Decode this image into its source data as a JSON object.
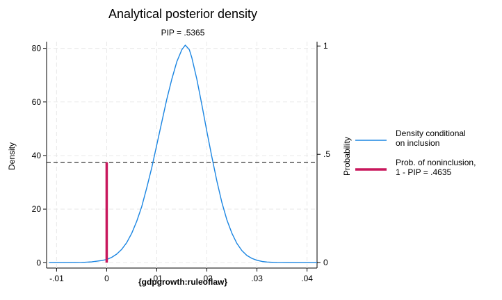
{
  "chart_data": {
    "type": "line",
    "title": "Analytical posterior density",
    "subtitle": "PIP = .5365",
    "xlabel": "{gdpgrowth:ruleoflaw}",
    "ylabel": "Density",
    "y2label": "Probability",
    "xlim": [
      -0.012,
      0.042
    ],
    "ylim": [
      -2,
      82.5
    ],
    "y2lim": [
      -0.025,
      1.02
    ],
    "grid": true,
    "legend_position": "right",
    "x_ticks": [
      {
        "value": -0.01,
        "label": "-.01"
      },
      {
        "value": 0,
        "label": "0"
      },
      {
        "value": 0.01,
        "label": ".01"
      },
      {
        "value": 0.02,
        "label": ".02"
      },
      {
        "value": 0.03,
        "label": ".03"
      },
      {
        "value": 0.04,
        "label": ".04"
      }
    ],
    "y_ticks": [
      {
        "value": 0,
        "label": "0"
      },
      {
        "value": 20,
        "label": "20"
      },
      {
        "value": 40,
        "label": "40"
      },
      {
        "value": 60,
        "label": "60"
      },
      {
        "value": 80,
        "label": "80"
      }
    ],
    "y2_ticks": [
      {
        "value": 0,
        "label": "0"
      },
      {
        "value": 0.5,
        "label": ".5"
      },
      {
        "value": 1,
        "label": "1"
      }
    ],
    "series": [
      {
        "name": "Density conditional on inclusion",
        "legend_lines": [
          "Density conditional",
          "on inclusion"
        ],
        "color": "#1a85e2",
        "x": [
          -0.0115,
          -0.008,
          -0.005,
          -0.003,
          -0.001,
          0.0,
          0.001,
          0.002,
          0.003,
          0.004,
          0.005,
          0.006,
          0.007,
          0.008,
          0.009,
          0.01,
          0.011,
          0.012,
          0.013,
          0.014,
          0.015,
          0.0157,
          0.0165,
          0.017,
          0.018,
          0.019,
          0.02,
          0.021,
          0.022,
          0.023,
          0.024,
          0.025,
          0.026,
          0.027,
          0.028,
          0.029,
          0.03,
          0.031,
          0.032,
          0.034,
          0.036,
          0.038,
          0.042
        ],
        "y": [
          0,
          0.02,
          0.1,
          0.3,
          0.8,
          1.2,
          2.0,
          3.2,
          5.0,
          7.5,
          11.0,
          15.5,
          21.0,
          28.0,
          35.5,
          44.0,
          52.5,
          61.0,
          68.5,
          75.0,
          79.5,
          81.2,
          79.5,
          76.5,
          68.5,
          59.0,
          49.0,
          39.5,
          30.5,
          22.5,
          16.0,
          11.0,
          7.2,
          4.5,
          2.7,
          1.6,
          0.9,
          0.5,
          0.25,
          0.06,
          0.01,
          0,
          0
        ]
      },
      {
        "name": "Prob. of noninclusion, 1 - PIP = .4635",
        "legend_lines": [
          "Prob. of noninclusion,",
          "1 - PIP = .4635"
        ],
        "color": "#c8175c",
        "type": "spike",
        "x": 0,
        "probability": 0.4635
      }
    ],
    "reference_line": {
      "axis": "y2",
      "value": 0.4635,
      "style": "dashed"
    }
  }
}
